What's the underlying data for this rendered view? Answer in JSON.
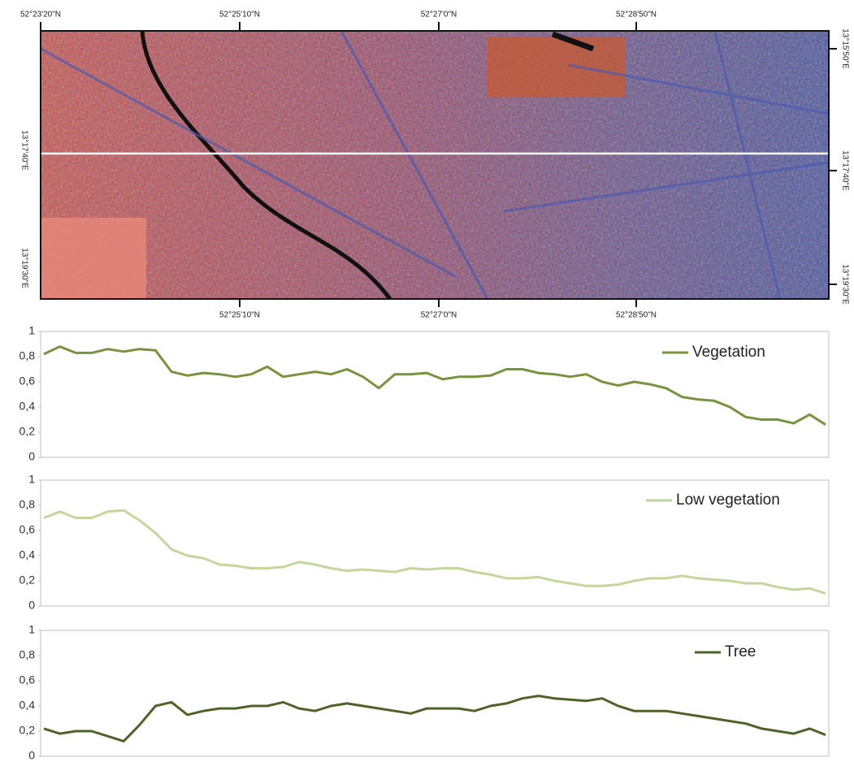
{
  "map": {
    "top_labels": [
      "52°23'20\"N",
      "52°25'10\"N",
      "52°27'0\"N",
      "52°28'50\"N"
    ],
    "bottom_labels": [
      "52°25'10\"N",
      "52°27'0\"N",
      "52°28'50\"N"
    ],
    "left_labels": [
      "13°17'40\"E",
      "13°19'30\"E"
    ],
    "right_labels": [
      "13°15'50\"E",
      "13°17'40\"E",
      "13°19'30\"E"
    ]
  },
  "chart_data": [
    {
      "type": "line",
      "ylim": [
        0,
        1
      ],
      "yticks": [
        0,
        {
          "value": 0.2,
          "label": "0,2"
        },
        {
          "value": 0.4,
          "label": "0,4"
        },
        {
          "value": 0.6,
          "label": "0,6"
        },
        {
          "value": 0.8,
          "label": "0,8"
        },
        1
      ],
      "legend": "top-right",
      "series": [
        {
          "name": "Vegetation",
          "color": "#77933c",
          "values": [
            0.82,
            0.88,
            0.83,
            0.83,
            0.86,
            0.84,
            0.86,
            0.85,
            0.68,
            0.65,
            0.67,
            0.66,
            0.64,
            0.66,
            0.72,
            0.64,
            0.66,
            0.68,
            0.66,
            0.7,
            0.64,
            0.55,
            0.66,
            0.66,
            0.67,
            0.62,
            0.64,
            0.64,
            0.65,
            0.7,
            0.7,
            0.67,
            0.66,
            0.64,
            0.66,
            0.6,
            0.57,
            0.6,
            0.58,
            0.55,
            0.48,
            0.46,
            0.45,
            0.4,
            0.32,
            0.3,
            0.3,
            0.27,
            0.34,
            0.26
          ]
        }
      ]
    },
    {
      "type": "line",
      "ylim": [
        0,
        1
      ],
      "yticks": [
        0,
        {
          "value": 0.2,
          "label": "0,2"
        },
        {
          "value": 0.4,
          "label": "0,4"
        },
        {
          "value": 0.6,
          "label": "0,6"
        },
        {
          "value": 0.8,
          "label": "0,8"
        },
        1
      ],
      "legend": "top-right",
      "series": [
        {
          "name": "Low vegetation",
          "color": "#c3d69b",
          "values": [
            0.7,
            0.75,
            0.7,
            0.7,
            0.75,
            0.76,
            0.68,
            0.58,
            0.45,
            0.4,
            0.38,
            0.33,
            0.32,
            0.3,
            0.3,
            0.31,
            0.35,
            0.33,
            0.3,
            0.28,
            0.29,
            0.28,
            0.27,
            0.3,
            0.29,
            0.3,
            0.3,
            0.27,
            0.25,
            0.22,
            0.22,
            0.23,
            0.2,
            0.18,
            0.16,
            0.16,
            0.17,
            0.2,
            0.22,
            0.22,
            0.24,
            0.22,
            0.21,
            0.2,
            0.18,
            0.18,
            0.15,
            0.13,
            0.14,
            0.1
          ]
        }
      ]
    },
    {
      "type": "line",
      "ylim": [
        0,
        1
      ],
      "yticks": [
        0,
        {
          "value": 0.2,
          "label": "0,2"
        },
        {
          "value": 0.4,
          "label": "0,4"
        },
        {
          "value": 0.6,
          "label": "0,6"
        },
        {
          "value": 0.8,
          "label": "0,8"
        },
        1
      ],
      "legend": "top-right",
      "series": [
        {
          "name": "Tree",
          "color": "#4f6228",
          "values": [
            0.22,
            0.18,
            0.2,
            0.2,
            0.16,
            0.12,
            0.25,
            0.4,
            0.43,
            0.33,
            0.36,
            0.38,
            0.38,
            0.4,
            0.4,
            0.43,
            0.38,
            0.36,
            0.4,
            0.42,
            0.4,
            0.38,
            0.36,
            0.34,
            0.38,
            0.38,
            0.38,
            0.36,
            0.4,
            0.42,
            0.46,
            0.48,
            0.46,
            0.45,
            0.44,
            0.46,
            0.4,
            0.36,
            0.36,
            0.36,
            0.34,
            0.32,
            0.3,
            0.28,
            0.26,
            0.22,
            0.2,
            0.18,
            0.22,
            0.17
          ]
        }
      ]
    }
  ]
}
